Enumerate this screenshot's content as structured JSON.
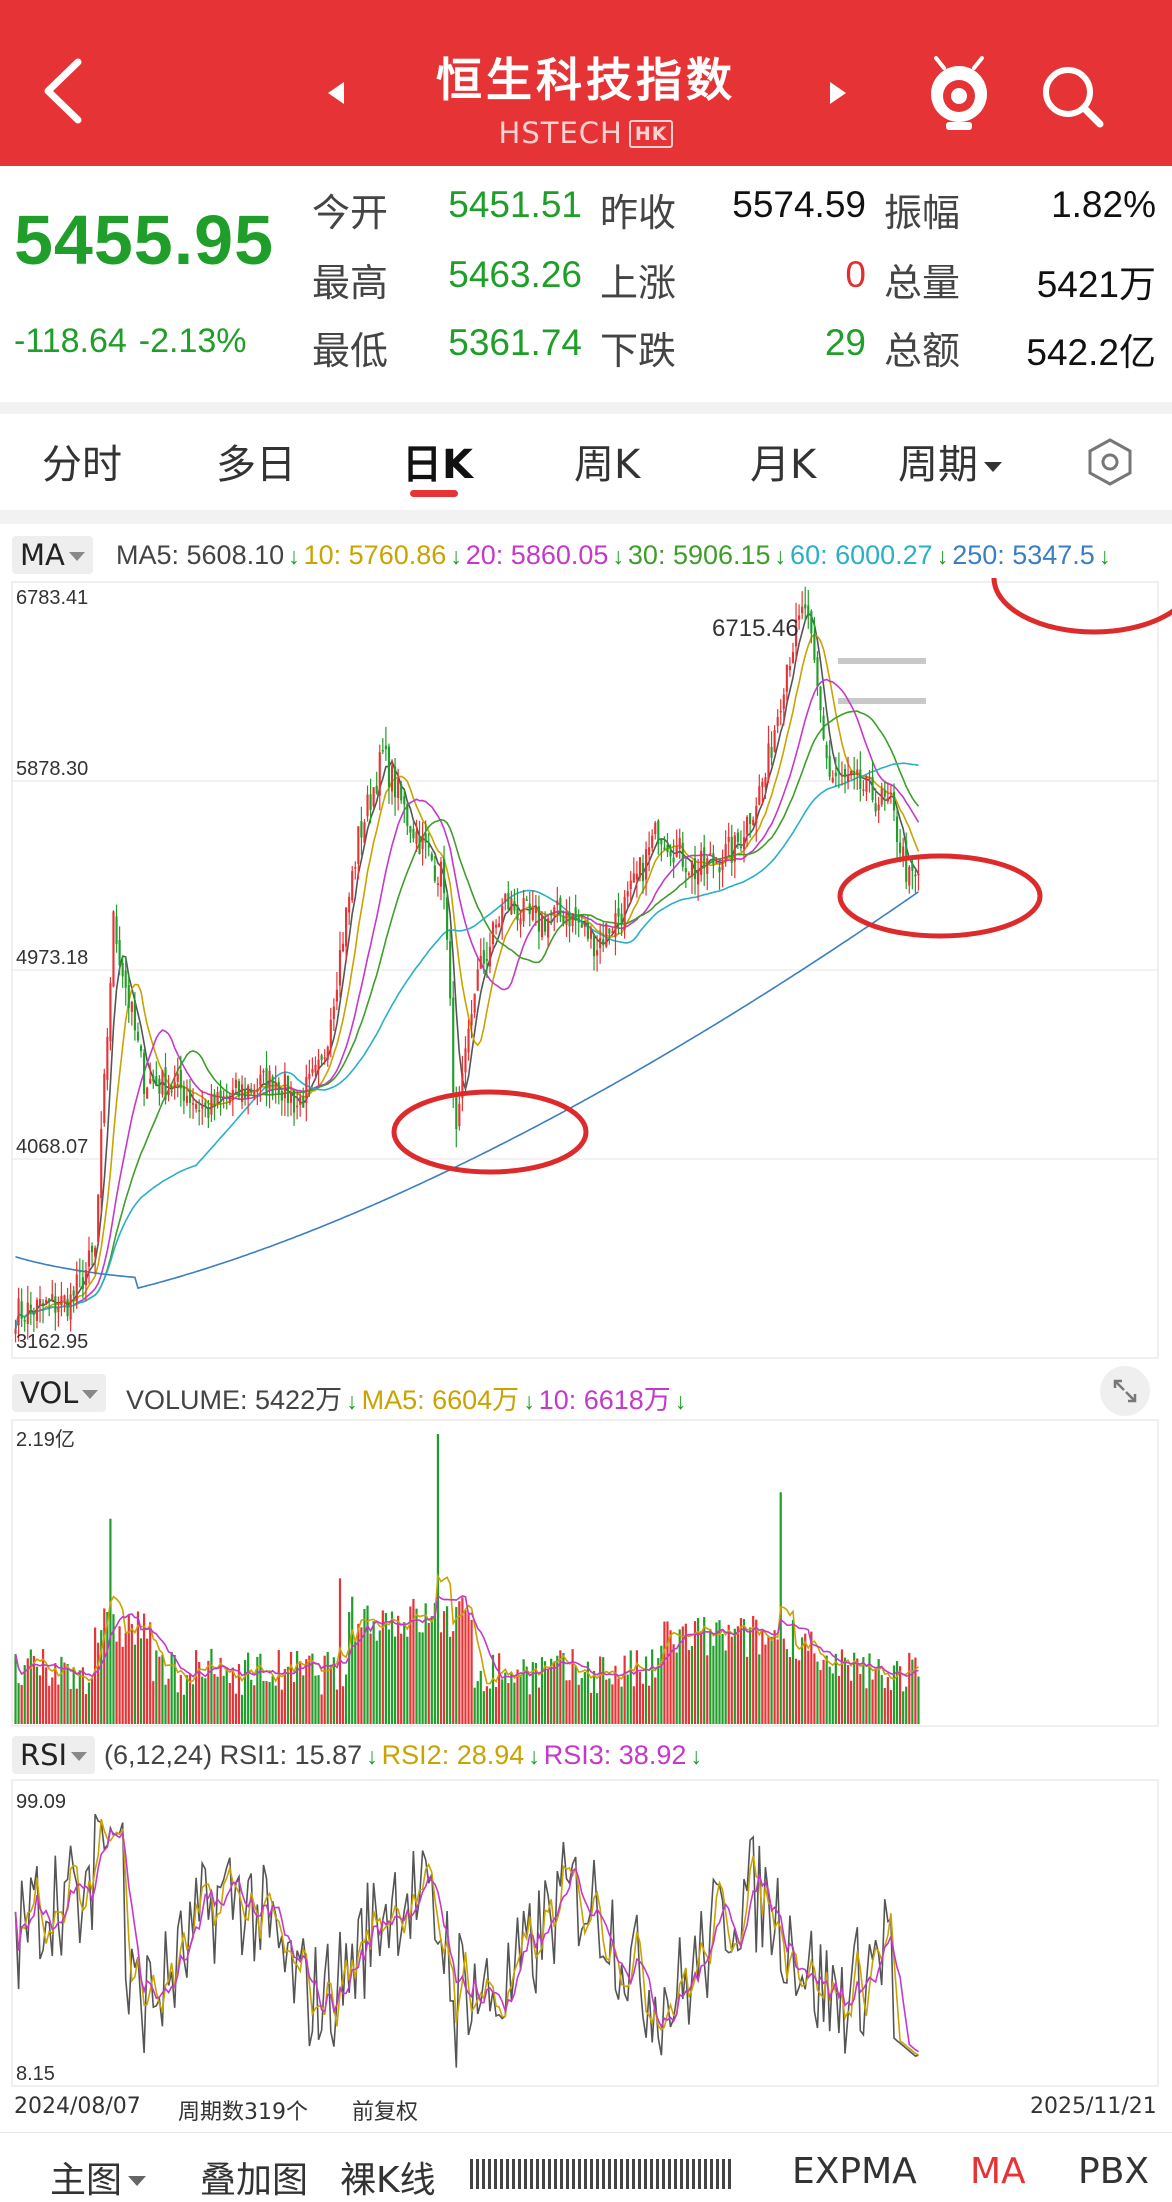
{
  "header": {
    "title": "恒生科技指数",
    "subtitle": "HSTECH",
    "badge": "HK",
    "bg_color": "#e63335",
    "icons": [
      "back-arrow-icon",
      "prev-triangle-icon",
      "next-triangle-icon",
      "mascot-icon",
      "search-icon"
    ]
  },
  "quote": {
    "price": "5455.95",
    "change": "-118.64",
    "change_pct": "-2.13%",
    "rows": [
      [
        {
          "label": "今开",
          "value": "5451.51",
          "color": "green"
        },
        {
          "label": "昨收",
          "value": "5574.59",
          "color": "dark"
        },
        {
          "label": "振幅",
          "value": "1.82%",
          "color": "dark"
        }
      ],
      [
        {
          "label": "最高",
          "value": "5463.26",
          "color": "green"
        },
        {
          "label": "上涨",
          "value": "0",
          "color": "red"
        },
        {
          "label": "总量",
          "value": "5421万",
          "color": "dark"
        }
      ],
      [
        {
          "label": "最低",
          "value": "5361.74",
          "color": "green"
        },
        {
          "label": "下跌",
          "value": "29",
          "color": "green"
        },
        {
          "label": "总额",
          "value": "542.2亿",
          "color": "dark"
        }
      ]
    ]
  },
  "tabs": {
    "items": [
      "分时",
      "多日",
      "日K",
      "周K",
      "月K",
      "周期"
    ],
    "active": "日K"
  },
  "ma_row": {
    "selector": "MA",
    "items": [
      {
        "text": "MA5: 5608.10",
        "color": "#444444"
      },
      {
        "text": "10: 5760.86",
        "color": "#c9a300"
      },
      {
        "text": "20: 5860.05",
        "color": "#c439c9"
      },
      {
        "text": "30: 5906.15",
        "color": "#3f9e2a"
      },
      {
        "text": "60: 6000.27",
        "color": "#2ab0c6"
      },
      {
        "text": "250: 5347.5",
        "color": "#3b7ec2"
      }
    ]
  },
  "vol_row": {
    "selector": "VOL",
    "items": [
      {
        "text": "VOLUME: 5422万",
        "color": "#444444"
      },
      {
        "text": "MA5: 6604万",
        "color": "#c9a300"
      },
      {
        "text": "10: 6618万",
        "color": "#c439c9"
      }
    ]
  },
  "rsi_row": {
    "selector": "RSI",
    "items": [
      {
        "text": "(6,12,24) RSI1: 15.87",
        "color": "#444444"
      },
      {
        "text": "RSI2: 28.94",
        "color": "#c9a300"
      },
      {
        "text": "RSI3: 38.92",
        "color": "#c439c9"
      }
    ]
  },
  "chart_data": [
    {
      "type": "candlestick",
      "yticks": [
        "6783.41",
        "5878.30",
        "4973.18",
        "4068.07",
        "3162.95"
      ],
      "ylim": [
        3162.95,
        6783.41
      ],
      "annotation_high": "6715.46",
      "x_start": "2024/08/07",
      "x_end": "2025/11/21",
      "anchors": [
        [
          0,
          3330
        ],
        [
          18,
          3390
        ],
        [
          26,
          3620
        ],
        [
          32,
          5200
        ],
        [
          42,
          4450
        ],
        [
          55,
          4400
        ],
        [
          62,
          4300
        ],
        [
          75,
          4400
        ],
        [
          85,
          4450
        ],
        [
          92,
          4330
        ],
        [
          100,
          4500
        ],
        [
          112,
          5600
        ],
        [
          120,
          6000
        ],
        [
          128,
          5700
        ],
        [
          140,
          5400
        ],
        [
          144,
          4150
        ],
        [
          150,
          4900
        ],
        [
          160,
          5300
        ],
        [
          170,
          5200
        ],
        [
          180,
          5250
        ],
        [
          190,
          5100
        ],
        [
          200,
          5300
        ],
        [
          210,
          5650
        ],
        [
          222,
          5450
        ],
        [
          235,
          5550
        ],
        [
          245,
          5900
        ],
        [
          252,
          6450
        ],
        [
          258,
          6715
        ],
        [
          266,
          5900
        ],
        [
          276,
          5850
        ],
        [
          286,
          5750
        ],
        [
          292,
          5400
        ]
      ],
      "ma250_last": 5347.5
    },
    {
      "type": "bar",
      "name": "VOLUME",
      "ytick": "2.19亿",
      "ylim": [
        0,
        2.19
      ]
    },
    {
      "type": "line",
      "name": "RSI",
      "yticks": [
        "99.09",
        "8.15"
      ],
      "ylim": [
        8.15,
        99.09
      ],
      "series_last": {
        "RSI1": 15.87,
        "RSI2": 28.94,
        "RSI3": 38.92
      }
    }
  ],
  "footer": {
    "start_date": "2024/08/07",
    "period_count": "周期数319个",
    "adjust": "前复权",
    "end_date": "2025/11/21",
    "bottom_items": [
      "主图",
      "叠加图",
      "裸K线",
      "EXPMA",
      "MA",
      "PBX"
    ],
    "bottom_active": "MA"
  },
  "colors": {
    "up": "#e63335",
    "down": "#1f9e29",
    "annotation_circle": "#dd2b2b"
  }
}
